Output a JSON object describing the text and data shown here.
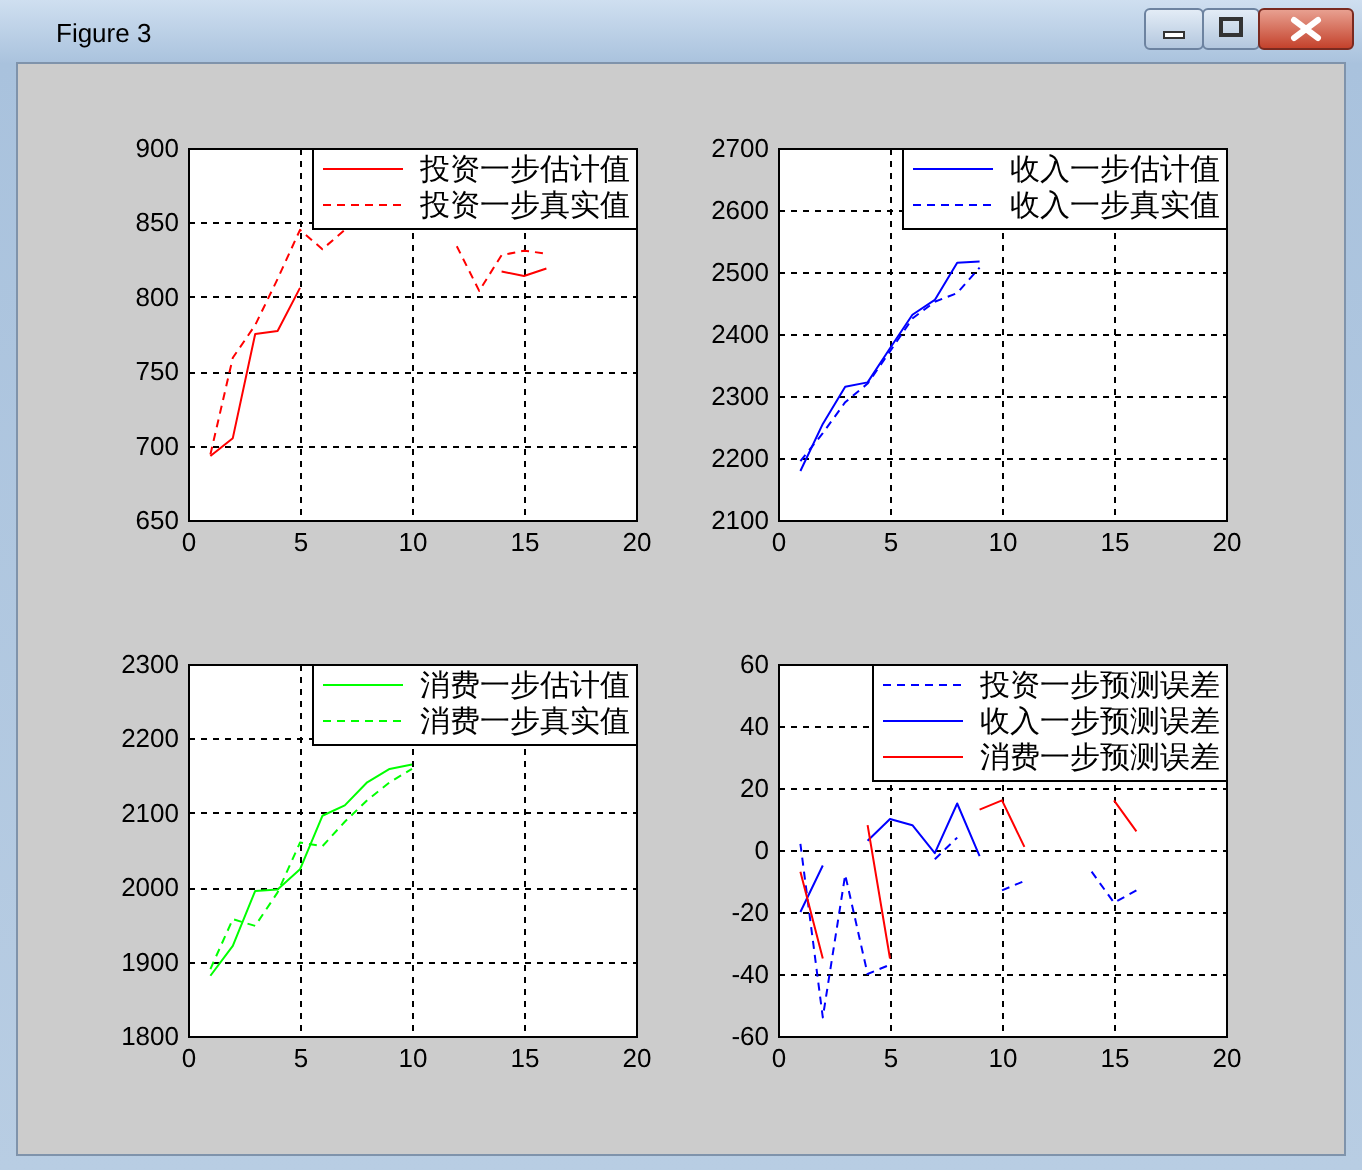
{
  "chart_data": [
    {
      "type": "line",
      "annotations": [
        "Figure 3"
      ],
      "x": [
        1,
        2,
        3,
        4,
        5,
        6,
        7,
        8,
        9,
        10,
        11,
        12,
        13,
        14,
        15,
        16
      ],
      "xlim": [
        0,
        20
      ],
      "xticks": [
        0,
        5,
        10,
        15,
        20
      ],
      "ylim": [
        650,
        900
      ],
      "yticks": [
        650,
        700,
        750,
        800,
        850,
        900
      ],
      "grid": true,
      "legend": "top right",
      "series": [
        {
          "name": "投资一步估计值",
          "color": "#ff0000",
          "line_style": "solid",
          "values": [
            693,
            705,
            775,
            777,
            806,
            null,
            null,
            null,
            null,
            null,
            null,
            null,
            null,
            817,
            814,
            819
          ]
        },
        {
          "name": "投资一步真实值",
          "color": "#ff0000",
          "line_style": "dashed",
          "values": [
            694,
            759,
            781,
            812,
            845,
            832,
            845,
            null,
            null,
            null,
            null,
            834,
            804,
            828,
            831,
            829
          ]
        }
      ]
    },
    {
      "type": "line",
      "x": [
        1,
        2,
        3,
        4,
        5,
        6,
        7,
        8,
        9
      ],
      "xlim": [
        0,
        20
      ],
      "xticks": [
        0,
        5,
        10,
        15,
        20
      ],
      "ylim": [
        2100,
        2700
      ],
      "yticks": [
        2100,
        2200,
        2300,
        2400,
        2500,
        2600,
        2700
      ],
      "grid": true,
      "legend": "top right",
      "series": [
        {
          "name": "收入一步估计值",
          "color": "#0000ff",
          "line_style": "solid",
          "values": [
            2179,
            2255,
            2315,
            2322,
            2377,
            2431,
            2455,
            2515,
            2517
          ]
        },
        {
          "name": "收入一步真实值",
          "color": "#0000ff",
          "line_style": "dashed",
          "values": [
            2195,
            2240,
            2290,
            2320,
            2372,
            2425,
            2452,
            2466,
            2507
          ]
        }
      ]
    },
    {
      "type": "line",
      "x": [
        1,
        2,
        3,
        4,
        5,
        6,
        7,
        8,
        9,
        10
      ],
      "xlim": [
        0,
        20
      ],
      "xticks": [
        0,
        5,
        10,
        15,
        20
      ],
      "ylim": [
        1800,
        2300
      ],
      "yticks": [
        1800,
        1900,
        2000,
        2100,
        2200,
        2300
      ],
      "grid": true,
      "legend": "top right",
      "series": [
        {
          "name": "消费一步估计值",
          "color": "#00ff00",
          "line_style": "solid",
          "values": [
            1881,
            1921,
            1995,
            1997,
            2024,
            2096,
            2110,
            2141,
            2159,
            2165
          ]
        },
        {
          "name": "消费一步真实值",
          "color": "#00ff00",
          "line_style": "dashed",
          "values": [
            1890,
            1957,
            1948,
            1993,
            2060,
            2055,
            2088,
            2117,
            2141,
            2159
          ]
        }
      ]
    },
    {
      "type": "line",
      "x": [
        1,
        2,
        3,
        4,
        5,
        6,
        7,
        8,
        9,
        10,
        11,
        12,
        13,
        14,
        15,
        16
      ],
      "xlim": [
        0,
        20
      ],
      "xticks": [
        0,
        5,
        10,
        15,
        20
      ],
      "ylim": [
        -60,
        60
      ],
      "yticks": [
        -60,
        -40,
        -20,
        0,
        20,
        40,
        60
      ],
      "grid": true,
      "legend": "top right",
      "series": [
        {
          "name": "投资一步预测误差",
          "color": "#0000ff",
          "line_style": "dashed",
          "values": [
            2,
            -54,
            -8,
            -40,
            -37,
            null,
            -3,
            4,
            null,
            -13,
            -10,
            null,
            null,
            -7,
            -17,
            -13
          ]
        },
        {
          "name": "收入一步预测误差",
          "color": "#0000ff",
          "line_style": "solid",
          "values": [
            -20,
            -5,
            null,
            3,
            10,
            8,
            -1,
            15,
            -2,
            null,
            null,
            null,
            null,
            null,
            null,
            null
          ]
        },
        {
          "name": "消费一步预测误差",
          "color": "#ff0000",
          "line_style": "solid",
          "values": [
            -7,
            -35,
            null,
            8,
            -35,
            null,
            null,
            null,
            13,
            16,
            1,
            null,
            null,
            null,
            16,
            6
          ]
        }
      ]
    }
  ]
}
